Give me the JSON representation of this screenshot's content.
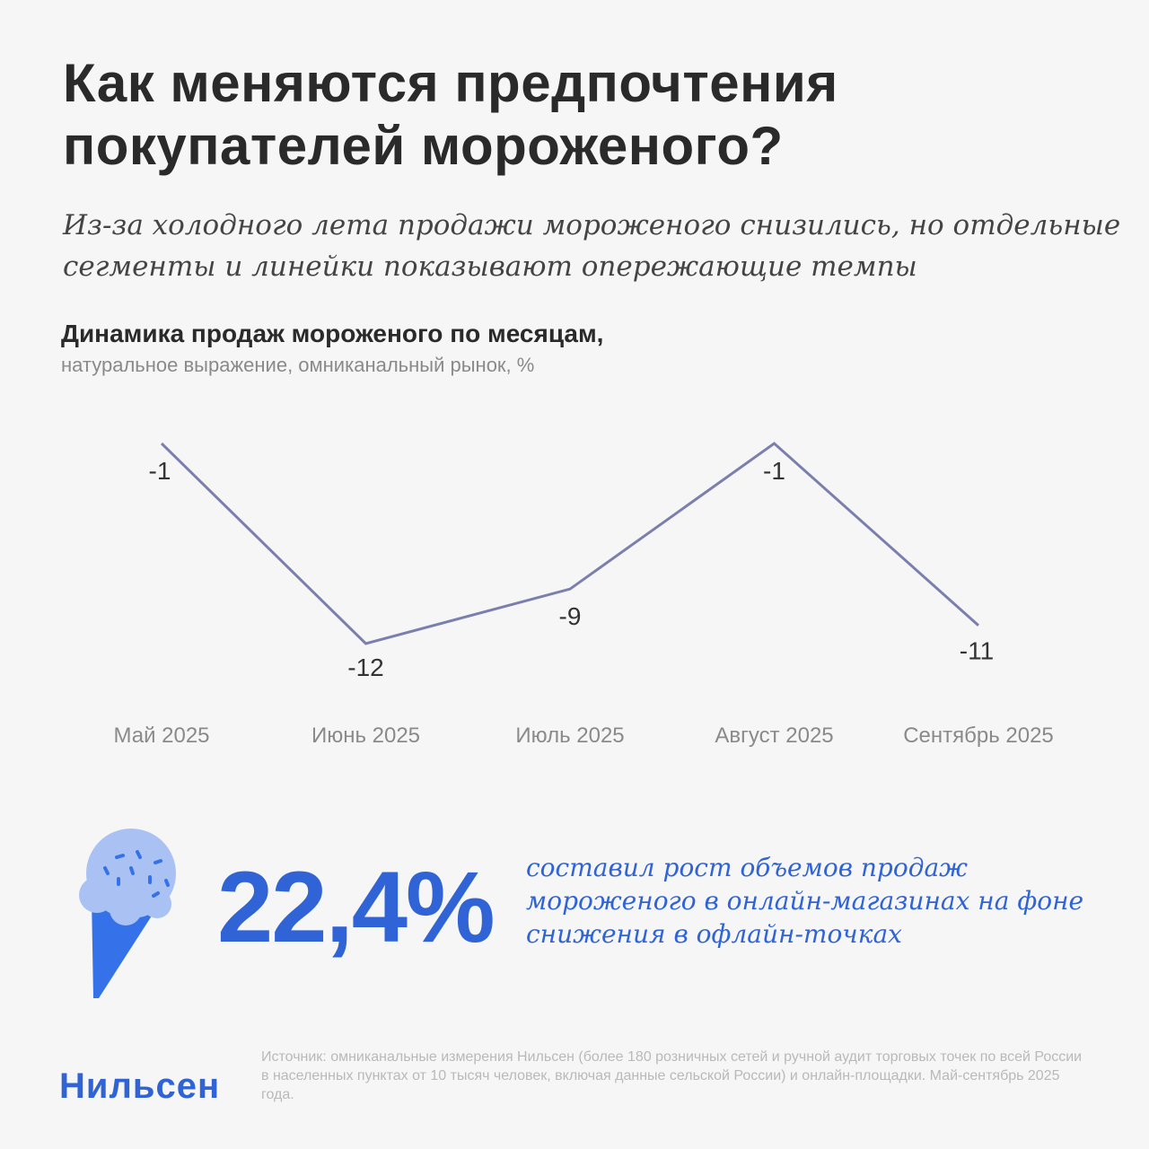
{
  "header": {
    "title": "Как меняются предпочтения покупателей мороженого?",
    "subtitle": "Из-за холодного лета продажи мороженого снизились, но отдельные сегменты и линейки показывают опережающие темпы"
  },
  "chart_data": {
    "type": "line",
    "title": "Динамика продаж мороженого по месяцам,",
    "subtitle": "натуральное выражение, омниканальный рынок, %",
    "categories": [
      "Май 2025",
      "Июнь 2025",
      "Июль 2025",
      "Август 2025",
      "Сентябрь 2025"
    ],
    "values": [
      -1,
      -12,
      -9,
      -1,
      -11
    ],
    "data_labels": [
      "-1",
      "-12",
      "-9",
      "-1",
      "-11"
    ],
    "line_color": "#7b7fae",
    "grid": false
  },
  "highlight": {
    "value": "22,4%",
    "text": "составил рост объемов продаж мороженого в онлайн-магазинах на фоне снижения в офлайн-точках",
    "color": "#2f63d6",
    "icon": "ice-cream-cone-icon"
  },
  "footer": {
    "logo": "Нильсен",
    "source": "Источник: омниканальные измерения Нильсен (более 180 розничных сетей и ручной аудит торговых точек по всей России в населенных пунктах от 10 тысяч человек, включая данные сельской России) и онлайн-площадки. Май-сентябрь 2025 года."
  }
}
